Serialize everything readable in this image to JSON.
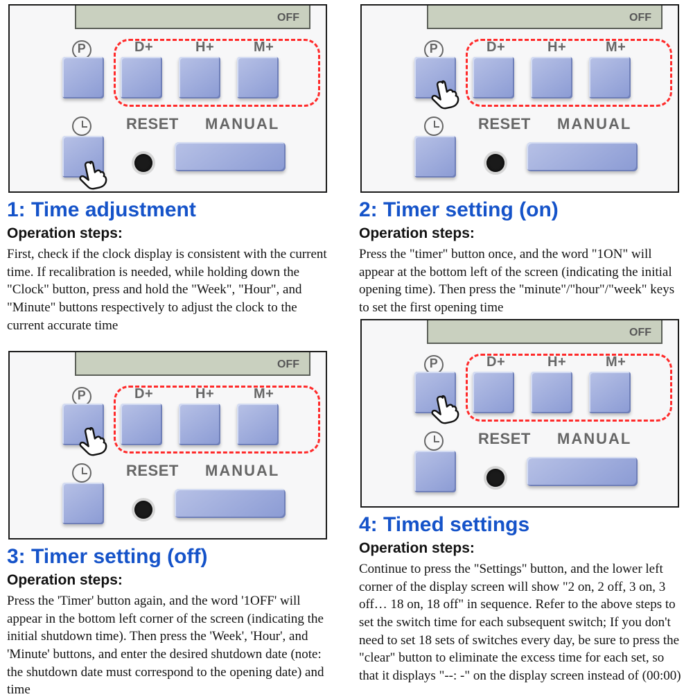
{
  "colors": {
    "title": "#1553c9",
    "text": "#111111",
    "dashed": "#ff2a2a",
    "keycap_light": "#b7c1e6",
    "keycap_dark": "#8b9bd4",
    "lcd": "#c9d0bf",
    "frame_border": "#1a1a1a",
    "label_gray": "#666666"
  },
  "device": {
    "off": "OFF",
    "row1_labels": {
      "P": "P",
      "D": "D+",
      "H": "H+",
      "M": "M+"
    },
    "row2_labels": {
      "reset": "RESET",
      "manual": "MANUAL"
    }
  },
  "panels": {
    "p1": {
      "title": "1: Time adjustment",
      "subtitle": "Operation steps:",
      "body": "First, check if the clock display is consistent with the current time. If recalibration is needed, while holding down the \"Clock\" button, press and hold the \"Week\", \"Hour\", and \"Minute\" buttons respectively to adjust the clock to the current accurate time",
      "hand_at": "clock",
      "dashed": "dhm"
    },
    "p2": {
      "title": "2: Timer setting (on)",
      "subtitle": "Operation steps:",
      "body": "Press the \"timer\" button once, and the word \"1ON\" will appear at the bottom left of the screen (indicating the initial opening time). Then press the \"minute\"/\"hour\"/\"week\" keys to set the first opening time",
      "hand_at": "P",
      "dashed": "dhm"
    },
    "p3": {
      "title": "3: Timer setting (off)",
      "subtitle": "Operation steps:",
      "body": "Press the 'Timer' button again, and the word '1OFF' will appear in the bottom left corner of the screen (indicating the initial shutdown time). Then press the 'Week', 'Hour', and 'Minute' buttons, and enter the desired shutdown date (note: the shutdown date must correspond to the opening date) and time",
      "hand_at": "P",
      "dashed": "dhm"
    },
    "p4": {
      "title": "4: Timed settings",
      "subtitle": "Operation steps:",
      "body": "Continue to press the \"Settings\" button, and the lower left corner of the display screen will show \"2 on, 2 off, 3 on, 3 off… 18 on, 18 off\" in sequence. Refer to the above steps to set the switch time for each subsequent switch; If you don't need to set 18 sets of switches every day, be sure to press the \"clear\" button to eliminate the excess time for each set, so that it displays \"--: -\" on the display screen instead of (00:00)",
      "hand_at": "P",
      "dashed": "dhm"
    }
  }
}
